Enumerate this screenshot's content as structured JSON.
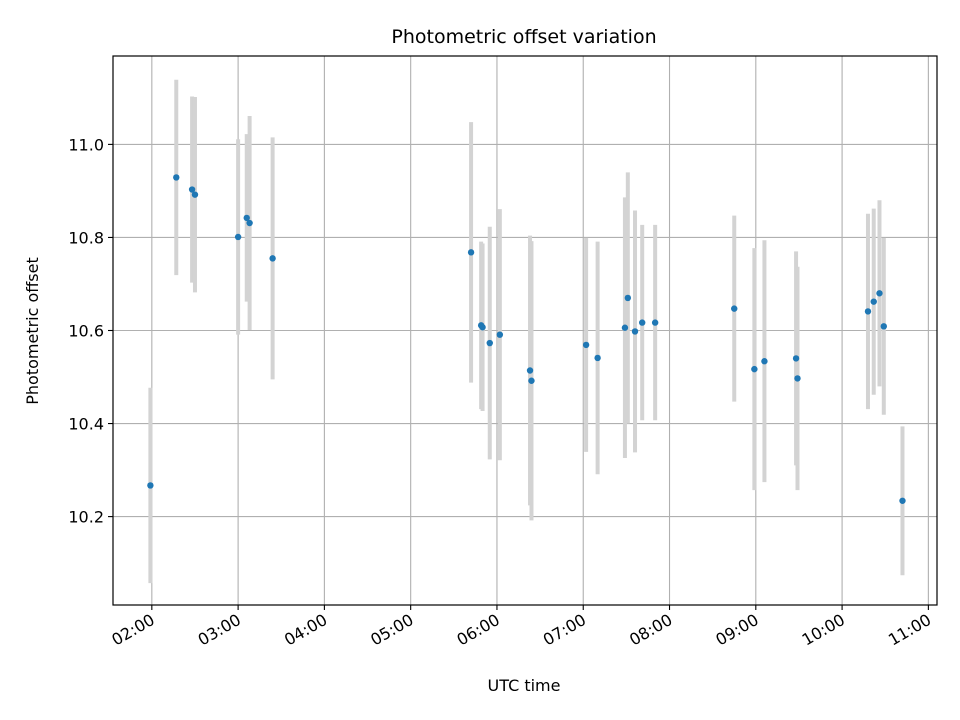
{
  "chart_data": {
    "type": "scatter",
    "title": "Photometric offset variation",
    "xlabel": "UTC time",
    "ylabel": "Photometric offset",
    "xlim": [
      "01:33",
      "11:06"
    ],
    "ylim": [
      10.01,
      11.19
    ],
    "x_ticks": [
      "02:00",
      "03:00",
      "04:00",
      "05:00",
      "06:00",
      "07:00",
      "08:00",
      "09:00",
      "10:00",
      "11:00"
    ],
    "y_ticks": [
      "10.2",
      "10.4",
      "10.6",
      "10.8",
      "11.0"
    ],
    "grid": true,
    "colors": {
      "point": "#1f77b4",
      "errorbar": "#d3d3d3",
      "grid": "#b0b0b0"
    },
    "series": [
      {
        "points": [
          {
            "time": "01:59",
            "y": 10.267,
            "err": 0.21
          },
          {
            "time": "02:17",
            "y": 10.929,
            "err": 0.21
          },
          {
            "time": "02:28",
            "y": 10.903,
            "err": 0.2
          },
          {
            "time": "02:30",
            "y": 10.892,
            "err": 0.21
          },
          {
            "time": "03:00",
            "y": 10.801,
            "err": 0.21
          },
          {
            "time": "03:06",
            "y": 10.842,
            "err": 0.18
          },
          {
            "time": "03:08",
            "y": 10.831,
            "err": 0.23
          },
          {
            "time": "03:24",
            "y": 10.755,
            "err": 0.26
          },
          {
            "time": "05:42",
            "y": 10.768,
            "err": 0.28
          },
          {
            "time": "05:49",
            "y": 10.611,
            "err": 0.18
          },
          {
            "time": "05:50",
            "y": 10.607,
            "err": 0.18
          },
          {
            "time": "05:55",
            "y": 10.573,
            "err": 0.25
          },
          {
            "time": "06:02",
            "y": 10.591,
            "err": 0.27
          },
          {
            "time": "06:23",
            "y": 10.514,
            "err": 0.29
          },
          {
            "time": "06:24",
            "y": 10.492,
            "err": 0.3
          },
          {
            "time": "07:02",
            "y": 10.569,
            "err": 0.23
          },
          {
            "time": "07:10",
            "y": 10.541,
            "err": 0.25
          },
          {
            "time": "07:29",
            "y": 10.606,
            "err": 0.28
          },
          {
            "time": "07:31",
            "y": 10.67,
            "err": 0.27
          },
          {
            "time": "07:36",
            "y": 10.598,
            "err": 0.26
          },
          {
            "time": "07:41",
            "y": 10.617,
            "err": 0.21
          },
          {
            "time": "07:50",
            "y": 10.617,
            "err": 0.21
          },
          {
            "time": "08:45",
            "y": 10.647,
            "err": 0.2
          },
          {
            "time": "08:59",
            "y": 10.517,
            "err": 0.26
          },
          {
            "time": "09:06",
            "y": 10.534,
            "err": 0.26
          },
          {
            "time": "09:28",
            "y": 10.54,
            "err": 0.23
          },
          {
            "time": "09:29",
            "y": 10.497,
            "err": 0.24
          },
          {
            "time": "10:18",
            "y": 10.641,
            "err": 0.21
          },
          {
            "time": "10:22",
            "y": 10.662,
            "err": 0.2
          },
          {
            "time": "10:26",
            "y": 10.68,
            "err": 0.2
          },
          {
            "time": "10:29",
            "y": 10.609,
            "err": 0.19
          },
          {
            "time": "10:42",
            "y": 10.234,
            "err": 0.16
          }
        ]
      }
    ]
  }
}
